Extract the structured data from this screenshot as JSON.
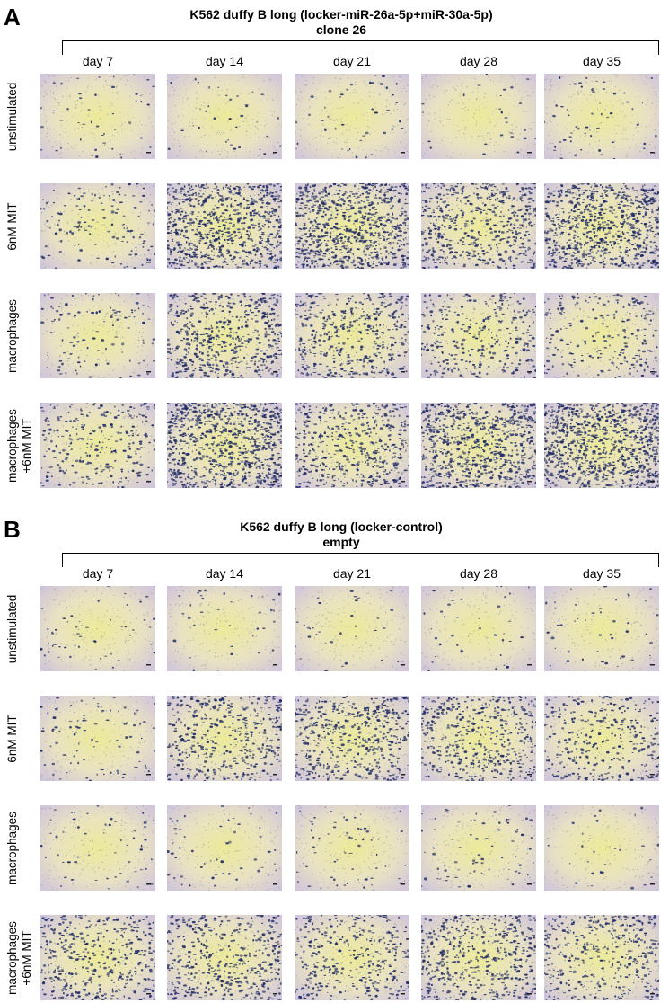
{
  "panels": [
    {
      "letter": "A",
      "title_line1": "K562 duffy B long (locker-miR-26a-5p+miR-30a-5p)",
      "title_line2": "clone 26",
      "days": [
        "day 7",
        "day 14",
        "day 21",
        "day 28",
        "day 35"
      ],
      "rows": [
        {
          "label": "unstimulated",
          "density": [
            0.05,
            0.04,
            0.05,
            0.03,
            0.06
          ]
        },
        {
          "label": "6nM MIT",
          "density": [
            0.15,
            0.85,
            0.9,
            0.6,
            0.9
          ]
        },
        {
          "label": "macrophages",
          "density": [
            0.12,
            0.6,
            0.5,
            0.35,
            0.25
          ]
        },
        {
          "label": "macrophages +6nM MIT",
          "density": [
            0.3,
            0.95,
            0.55,
            0.85,
            1.0
          ]
        }
      ]
    },
    {
      "letter": "B",
      "title_line1": "K562 duffy B long (locker-control)",
      "title_line2": "empty",
      "days": [
        "day 7",
        "day 14",
        "day 21",
        "day 28",
        "day 35"
      ],
      "rows": [
        {
          "label": "unstimulated",
          "density": [
            0.06,
            0.04,
            0.04,
            0.04,
            0.05
          ]
        },
        {
          "label": "6nM MIT",
          "density": [
            0.1,
            0.45,
            0.55,
            0.5,
            0.35
          ]
        },
        {
          "label": "macrophages",
          "density": [
            0.06,
            0.06,
            0.07,
            0.08,
            0.03
          ]
        },
        {
          "label": "macrophages +6nM MIT",
          "density": [
            0.45,
            0.5,
            0.4,
            0.55,
            0.45
          ]
        }
      ]
    }
  ],
  "colors": {
    "background": "#e9e2c2",
    "center": "#ecea9a",
    "edge": "#cfc4dc",
    "cell": "#1f2a66"
  }
}
